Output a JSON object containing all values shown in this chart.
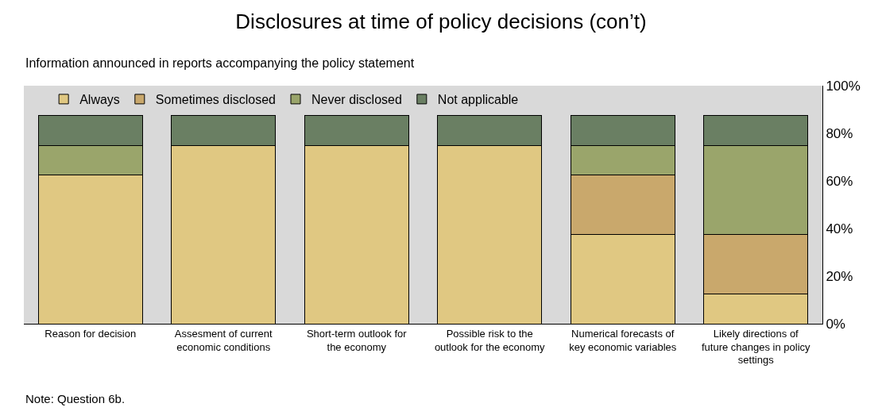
{
  "chart_data": {
    "type": "bar",
    "stacked": true,
    "title": "Disclosures at time of policy decisions (con’t)",
    "subtitle": "Information announced in reports accompanying the policy statement",
    "categories": [
      "Reason for decision",
      "Assesment of current economic conditions",
      "Short-term outlook for the economy",
      "Possible risk to the outlook for the economy",
      "Numerical forecasts of key economic variables",
      "Likely directions of future changes in policy settings"
    ],
    "series": [
      {
        "name": "Always",
        "color": "#e0c882",
        "values": [
          62.5,
          75,
          75,
          75,
          37.5,
          12.5
        ]
      },
      {
        "name": "Sometimes disclosed",
        "color": "#c9a86c",
        "values": [
          0,
          0,
          0,
          0,
          25,
          25
        ]
      },
      {
        "name": "Never disclosed",
        "color": "#9aa56b",
        "values": [
          12.5,
          0,
          0,
          0,
          12.5,
          37.5
        ]
      },
      {
        "name": "Not applicable",
        "color": "#6a7f63",
        "values": [
          12.5,
          12.5,
          12.5,
          12.5,
          12.5,
          12.5
        ]
      }
    ],
    "ylim": [
      0,
      100
    ],
    "yticks": [
      {
        "value": 0,
        "label": "0%"
      },
      {
        "value": 20,
        "label": "20%"
      },
      {
        "value": 40,
        "label": "40%"
      },
      {
        "value": 60,
        "label": "60%"
      },
      {
        "value": 80,
        "label": "80%"
      },
      {
        "value": 100,
        "label": "100%"
      }
    ],
    "grid": false,
    "legend": "top",
    "annotations": [
      "Note: Question 6b."
    ]
  }
}
